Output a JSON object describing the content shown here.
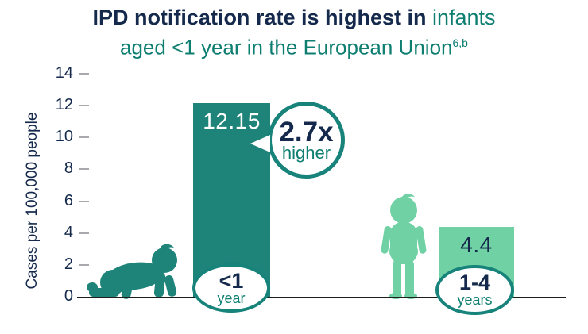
{
  "title": {
    "line1_bold": "IPD notification rate is highest in",
    "line1_accent": "infants",
    "line2": "aged <1 year in the European Union",
    "line2_sup": "6,b"
  },
  "chart_data": {
    "type": "bar",
    "title": "IPD notification rate is highest in infants aged <1 year in the European Union (6,b)",
    "ylabel": "Cases per 100,000 people",
    "xlabel": "",
    "ylim": [
      0,
      14
    ],
    "yticks": [
      0,
      2,
      4,
      6,
      8,
      10,
      12,
      14
    ],
    "grid": false,
    "categories": [
      "<1 year",
      "1-4 years"
    ],
    "values": [
      12.15,
      4.4
    ],
    "value_labels": [
      "12.15",
      "4.4"
    ],
    "bar_colors": [
      "#1E8379",
      "#70D1A5"
    ],
    "annotation": "2.7x higher"
  },
  "bars": [
    {
      "value_label": "12.15",
      "label_line1": "<1",
      "label_line2": "year"
    },
    {
      "value_label": "4.4",
      "label_line1": "1-4",
      "label_line2": "years"
    }
  ],
  "badge": {
    "multiplier": "2.7x",
    "caption": "higher"
  },
  "icons": {
    "bar1": "crawling-infant-icon",
    "bar2": "toddler-icon"
  },
  "colors": {
    "navy": "#14294B",
    "teal-text": "#0E7E71",
    "teal-dark": "#1E8379",
    "teal-ring": "#17837A",
    "green-light": "#70D1A5",
    "tick-gray": "#A7A9AC",
    "axis-black": "#1D1D1B"
  }
}
